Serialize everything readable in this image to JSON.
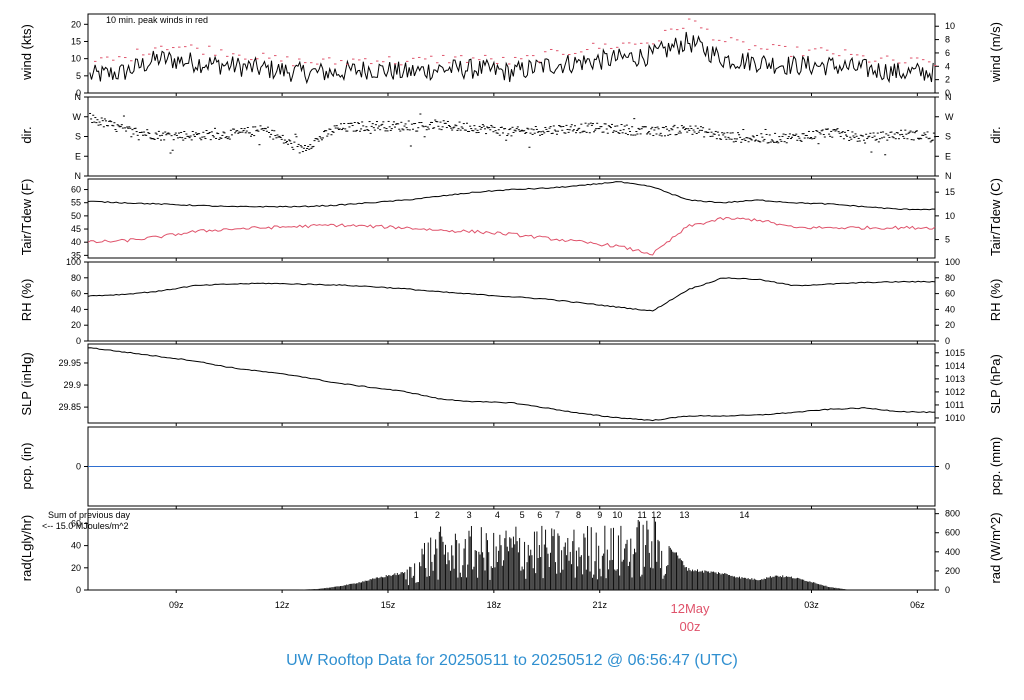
{
  "title": "UW Rooftop Data for 20250511  to  20250512 @ 06:56:47  (UTC)",
  "colors": {
    "title": "#2f8fd0",
    "date_marker": "#df536b",
    "peak": "#df536b",
    "dew": "#df536b",
    "pcp": "#2f6fd0",
    "rad_note": "#9a2fd0",
    "line": "#000000"
  },
  "date_marker": {
    "day": "12May",
    "hour": "00z"
  },
  "x_ticks": [
    "09z",
    "12z",
    "15z",
    "18z",
    "21z",
    "03z",
    "06z"
  ],
  "chart_data": [
    {
      "type": "line",
      "ylabel": "wind (kts)",
      "ylabel_right": "wind (m/s)",
      "note": "10 min. peak winds in red",
      "y_ticks": [
        0,
        5,
        10,
        15,
        20
      ],
      "y_ticks_right": [
        0,
        2,
        4,
        6,
        8,
        10
      ],
      "ylim": [
        0,
        23
      ],
      "x_hours_utc": [
        6.5,
        7.5,
        8.5,
        9.5,
        10.5,
        11.5,
        12.5,
        13.5,
        14.5,
        15.5,
        16.5,
        17.5,
        18.5,
        19.5,
        20.5,
        21.5,
        22.5,
        23.5,
        24.5,
        25.5,
        26.5,
        27.5,
        28.5,
        29.5,
        30.5
      ],
      "series": [
        {
          "values": [
            5,
            6,
            10,
            9,
            8,
            7,
            6,
            6,
            7,
            6,
            7,
            7,
            6,
            8,
            9,
            10,
            11,
            15,
            10,
            9,
            8,
            8,
            7,
            6,
            6
          ]
        },
        {
          "values": [
            9,
            10,
            14,
            13,
            12,
            10,
            9,
            9,
            10,
            9,
            10,
            10,
            9,
            11,
            13,
            14,
            15,
            21,
            15,
            13,
            12,
            12,
            10,
            9,
            9
          ]
        }
      ]
    },
    {
      "type": "scatter",
      "ylabel": "dir.",
      "ylabel_right": "dir.",
      "y_ticks": [
        "N",
        "W",
        "S",
        "E",
        "N"
      ],
      "x_hours_utc": [
        6.5,
        7.5,
        8.5,
        9.5,
        10.5,
        11.5,
        12.5,
        13.5,
        14.5,
        15.5,
        16.5,
        17.5,
        18.5,
        19.5,
        20.5,
        21.5,
        22.5,
        23.5,
        24.5,
        25.5,
        26.5,
        27.5,
        28.5,
        29.5,
        30.5
      ],
      "values_deg": [
        265,
        210,
        185,
        185,
        190,
        210,
        120,
        215,
        230,
        225,
        230,
        220,
        200,
        210,
        220,
        215,
        200,
        215,
        180,
        170,
        175,
        200,
        170,
        190,
        180
      ]
    },
    {
      "type": "line",
      "ylabel": "Tair/Tdew (F)",
      "ylabel_right": "Tair/Tdew (C)",
      "y_ticks": [
        35,
        40,
        45,
        50,
        55,
        60
      ],
      "y_ticks_right": [
        5,
        10,
        15
      ],
      "ylim": [
        34,
        64
      ],
      "x_hours_utc": [
        6.5,
        7.5,
        8.5,
        9.5,
        10.5,
        11.5,
        12.5,
        13.5,
        14.5,
        15.5,
        16.5,
        17.5,
        18.5,
        19.5,
        20.5,
        21.5,
        22.5,
        23.5,
        24.5,
        25.5,
        26.5,
        27.5,
        28.5,
        29.5,
        30.5
      ],
      "series": [
        {
          "values": [
            55.5,
            55,
            54.5,
            54,
            53.5,
            53.5,
            53.5,
            54,
            55,
            56,
            57.5,
            59,
            60,
            60.5,
            61.5,
            63,
            61,
            56,
            55,
            56,
            55,
            54.5,
            53.5,
            52.5,
            52.5
          ]
        },
        {
          "values": [
            40,
            40.5,
            42,
            44,
            45,
            45.5,
            46,
            46.5,
            46,
            45.5,
            44.5,
            44,
            43,
            41.5,
            40,
            38.5,
            35.5,
            46,
            49,
            48.5,
            45.5,
            45.5,
            45.5,
            45.5,
            45.5
          ]
        }
      ]
    },
    {
      "type": "line",
      "ylabel": "RH (%)",
      "ylabel_right": "RH (%)",
      "y_ticks": [
        0,
        20,
        40,
        60,
        80,
        100
      ],
      "ylim": [
        0,
        100
      ],
      "x_hours_utc": [
        6.5,
        7.5,
        8.5,
        9.5,
        10.5,
        11.5,
        12.5,
        13.5,
        14.5,
        15.5,
        16.5,
        17.5,
        18.5,
        19.5,
        20.5,
        21.5,
        22.5,
        23.5,
        24.5,
        25.5,
        26.5,
        27.5,
        28.5,
        29.5,
        30.5
      ],
      "values": [
        57,
        59,
        63,
        70,
        72,
        73,
        72,
        71,
        69,
        66,
        62,
        59,
        56,
        53,
        48,
        43,
        38,
        65,
        80,
        78,
        70,
        72,
        74,
        75,
        75
      ]
    },
    {
      "type": "line",
      "ylabel": "SLP (inHg)",
      "ylabel_right": "SLP (hPa)",
      "y_ticks": [
        29.85,
        29.9,
        29.95
      ],
      "y_ticks_right": [
        1010,
        1011,
        1012,
        1013,
        1014,
        1015
      ],
      "ylim": [
        29.814,
        29.993
      ],
      "x_hours_utc": [
        6.5,
        7.5,
        8.5,
        9.5,
        10.5,
        11.5,
        12.5,
        13.5,
        14.5,
        15.5,
        16.5,
        17.5,
        18.5,
        19.5,
        20.5,
        21.5,
        22.5,
        23.5,
        24.5,
        25.5,
        26.5,
        27.5,
        28.5,
        29.5,
        30.5
      ],
      "values": [
        29.985,
        29.975,
        29.965,
        29.955,
        29.94,
        29.93,
        29.92,
        29.905,
        29.895,
        29.885,
        29.868,
        29.862,
        29.86,
        29.848,
        29.835,
        29.826,
        29.82,
        29.83,
        29.83,
        29.832,
        29.838,
        29.845,
        29.848,
        29.84,
        29.838
      ]
    },
    {
      "type": "line",
      "ylabel": "pcp. (in)",
      "ylabel_right": "pcp. (mm)",
      "y_ticks": [
        0
      ],
      "y_ticks_right": [
        0
      ],
      "x_hours_utc": [
        6.5,
        30.5
      ],
      "values": [
        0,
        0
      ]
    },
    {
      "type": "bar",
      "ylabel": "rad(Lgly/hr)",
      "ylabel_right": "rad (W/m^2)",
      "note": "Sum of previous day",
      "note2": "<-- 15.0 MJoules/m^2",
      "y_ticks": [
        0,
        20,
        40,
        60
      ],
      "y_ticks_right": [
        0,
        200,
        400,
        600,
        800
      ],
      "ylim": [
        0,
        73
      ],
      "x_hours_utc": [
        12.5,
        13.0,
        13.5,
        14.0,
        14.5,
        15.0,
        15.5,
        16.0,
        16.5,
        17.0,
        17.5,
        18.0,
        18.5,
        19.0,
        19.5,
        20.0,
        20.5,
        21.0,
        21.5,
        22.0,
        22.5,
        23.0,
        23.5,
        24.0,
        24.5,
        25.0,
        25.5,
        26.0,
        26.5,
        27.0,
        27.5,
        28.0
      ],
      "values": [
        0.3,
        1,
        3,
        6,
        10,
        14,
        17,
        45,
        55,
        50,
        57,
        50,
        60,
        58,
        55,
        52,
        56,
        60,
        55,
        62,
        66,
        42,
        20,
        18,
        16,
        12,
        10,
        14,
        12,
        8,
        3,
        0.5
      ],
      "peak_labels": [
        "1",
        "2",
        "3",
        "4",
        "5",
        "6",
        "7",
        "8",
        "9",
        "10",
        "11",
        "12",
        "13",
        "14"
      ],
      "peak_hours_utc": [
        15.8,
        16.4,
        17.3,
        18.1,
        18.8,
        19.3,
        19.8,
        20.4,
        21.0,
        21.5,
        22.2,
        22.6,
        23.4,
        25.1
      ]
    }
  ]
}
